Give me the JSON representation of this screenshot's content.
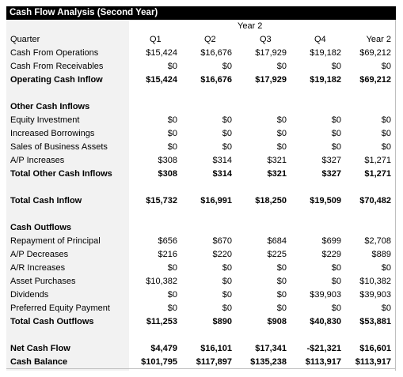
{
  "title": "Cash Flow Analysis (Second Year)",
  "year_label": "Year 2",
  "header": {
    "label": "Quarter",
    "cols": [
      "Q1",
      "Q2",
      "Q3",
      "Q4",
      "Year 2"
    ]
  },
  "rows": [
    {
      "label": "Cash From Operations",
      "values": [
        "$15,424",
        "$16,676",
        "$17,929",
        "$19,182",
        "$69,212"
      ]
    },
    {
      "label": "Cash From Receivables",
      "values": [
        "$0",
        "$0",
        "$0",
        "$0",
        "$0"
      ]
    },
    {
      "label": "Operating Cash Inflow",
      "values": [
        "$15,424",
        "$16,676",
        "$17,929",
        "$19,182",
        "$69,212"
      ]
    },
    {
      "label": "Other Cash Inflows",
      "values": [
        "",
        "",
        "",
        "",
        ""
      ]
    },
    {
      "label": "Equity Investment",
      "values": [
        "$0",
        "$0",
        "$0",
        "$0",
        "$0"
      ]
    },
    {
      "label": "Increased Borrowings",
      "values": [
        "$0",
        "$0",
        "$0",
        "$0",
        "$0"
      ]
    },
    {
      "label": "Sales of Business Assets",
      "values": [
        "$0",
        "$0",
        "$0",
        "$0",
        "$0"
      ]
    },
    {
      "label": "A/P Increases",
      "values": [
        "$308",
        "$314",
        "$321",
        "$327",
        "$1,271"
      ]
    },
    {
      "label": "Total Other Cash Inflows",
      "values": [
        "$308",
        "$314",
        "$321",
        "$327",
        "$1,271"
      ]
    },
    {
      "label": "Total Cash Inflow",
      "values": [
        "$15,732",
        "$16,991",
        "$18,250",
        "$19,509",
        "$70,482"
      ]
    },
    {
      "label": "Cash Outflows",
      "values": [
        "",
        "",
        "",
        "",
        ""
      ]
    },
    {
      "label": "Repayment of Principal",
      "values": [
        "$656",
        "$670",
        "$684",
        "$699",
        "$2,708"
      ]
    },
    {
      "label": "A/P Decreases",
      "values": [
        "$216",
        "$220",
        "$225",
        "$229",
        "$889"
      ]
    },
    {
      "label": "A/R Increases",
      "values": [
        "$0",
        "$0",
        "$0",
        "$0",
        "$0"
      ]
    },
    {
      "label": "Asset Purchases",
      "values": [
        "$10,382",
        "$0",
        "$0",
        "$0",
        "$10,382"
      ]
    },
    {
      "label": "Dividends",
      "values": [
        "$0",
        "$0",
        "$0",
        "$39,903",
        "$39,903"
      ]
    },
    {
      "label": "Preferred Equity Payment",
      "values": [
        "$0",
        "$0",
        "$0",
        "$0",
        "$0"
      ]
    },
    {
      "label": "Total Cash Outflows",
      "values": [
        "$11,253",
        "$890",
        "$908",
        "$40,830",
        "$53,881"
      ]
    },
    {
      "label": "Net Cash Flow",
      "values": [
        "$4,479",
        "$16,101",
        "$17,341",
        "-$21,321",
        "$16,601"
      ]
    },
    {
      "label": "Cash Balance",
      "values": [
        "$101,795",
        "$117,897",
        "$135,238",
        "$113,917",
        "$113,917"
      ]
    }
  ]
}
